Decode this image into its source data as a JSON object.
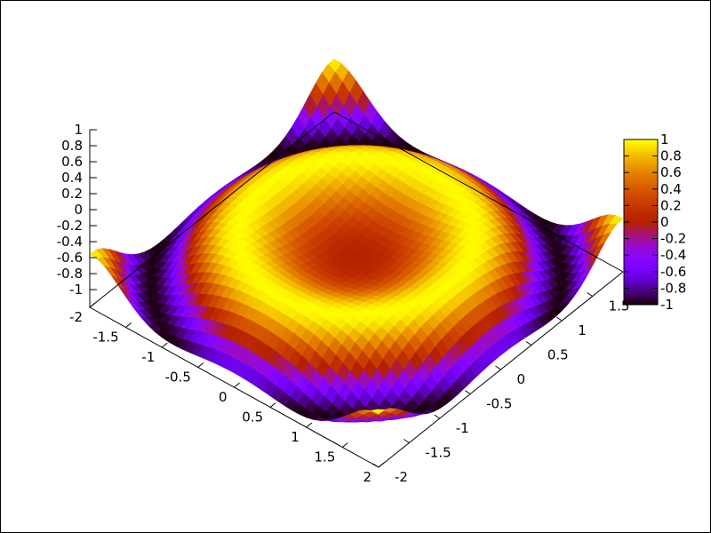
{
  "chart_data": {
    "type": "surface",
    "function_shape": "z = sin(x^2 + y^2)",
    "xrange": [
      -2,
      2
    ],
    "yrange": [
      -2,
      2
    ],
    "zrange": [
      -1,
      1
    ],
    "grid_points": 41,
    "x_ticks": [
      "-2",
      "-1.5",
      "-1",
      "-0.5",
      "0",
      "0.5",
      "1",
      "1.5",
      "2"
    ],
    "y_ticks": [
      "-2",
      "-1.5",
      "-1",
      "-0.5",
      "0",
      "0.5",
      "1",
      "1.5"
    ],
    "z_ticks": [
      "-1",
      "-0.8",
      "-0.6",
      "-0.4",
      "-0.2",
      "0",
      "0.2",
      "0.4",
      "0.6",
      "0.8",
      "1"
    ],
    "colorbar": {
      "range": [
        -1,
        1
      ],
      "ticks": [
        "-1",
        "-0.8",
        "-0.6",
        "-0.4",
        "-0.2",
        "0",
        "0.2",
        "0.4",
        "0.6",
        "0.8",
        "1"
      ],
      "palette": "black-purple-red-yellow",
      "placement": "right"
    },
    "title": "",
    "xlabel": "",
    "ylabel": "",
    "zlabel": ""
  }
}
